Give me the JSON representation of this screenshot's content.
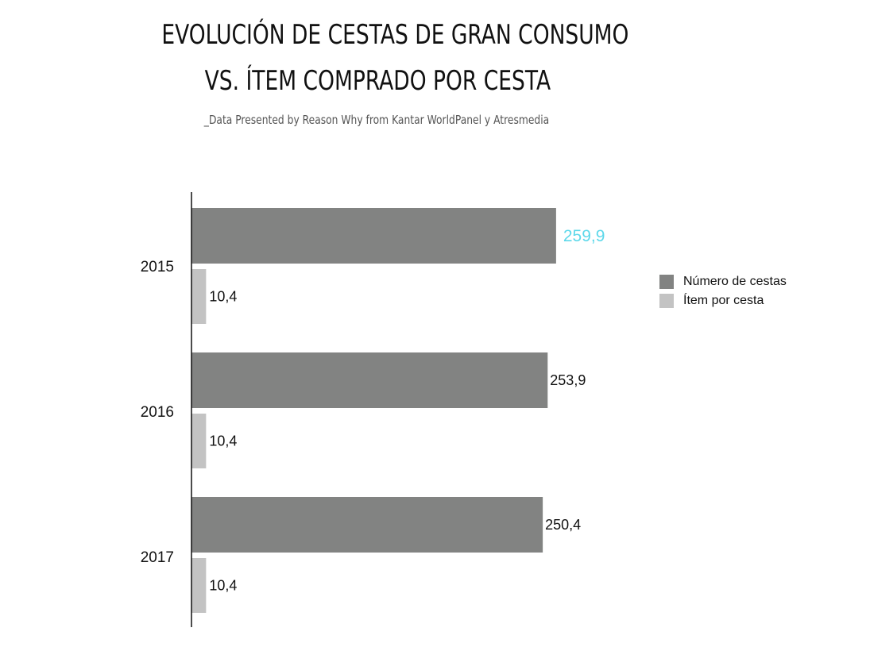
{
  "header": {
    "title_line1": "EVOLUCIÓN DE CESTAS DE GRAN CONSUMO",
    "title_line2": "VS. ÍTEM COMPRADO POR CESTA",
    "subtitle": "_Data Presented by Reason Why from Kantar WorldPanel y Atresmedia"
  },
  "chart_data": {
    "type": "bar",
    "orientation": "horizontal",
    "title": "EVOLUCIÓN DE CESTAS DE GRAN CONSUMO VS. ÍTEM COMPRADO POR CESTA",
    "categories": [
      "2015",
      "2016",
      "2017"
    ],
    "series": [
      {
        "name": "Número de cestas",
        "values": [
          259.9,
          253.9,
          250.4
        ],
        "labels": [
          "259,9",
          "253,9",
          "250,4"
        ],
        "color": "#828382"
      },
      {
        "name": "Ítem por cesta",
        "values": [
          10.4,
          10.4,
          10.4
        ],
        "labels": [
          "10,4",
          "10,4",
          "10,4"
        ],
        "color": "#c3c3c3"
      }
    ],
    "highlight": {
      "series": 0,
      "index": 0,
      "color": "#5dd8ea"
    },
    "label_color": "#111111",
    "xlim": [
      0,
      320
    ],
    "grid": false,
    "legend": "right"
  }
}
